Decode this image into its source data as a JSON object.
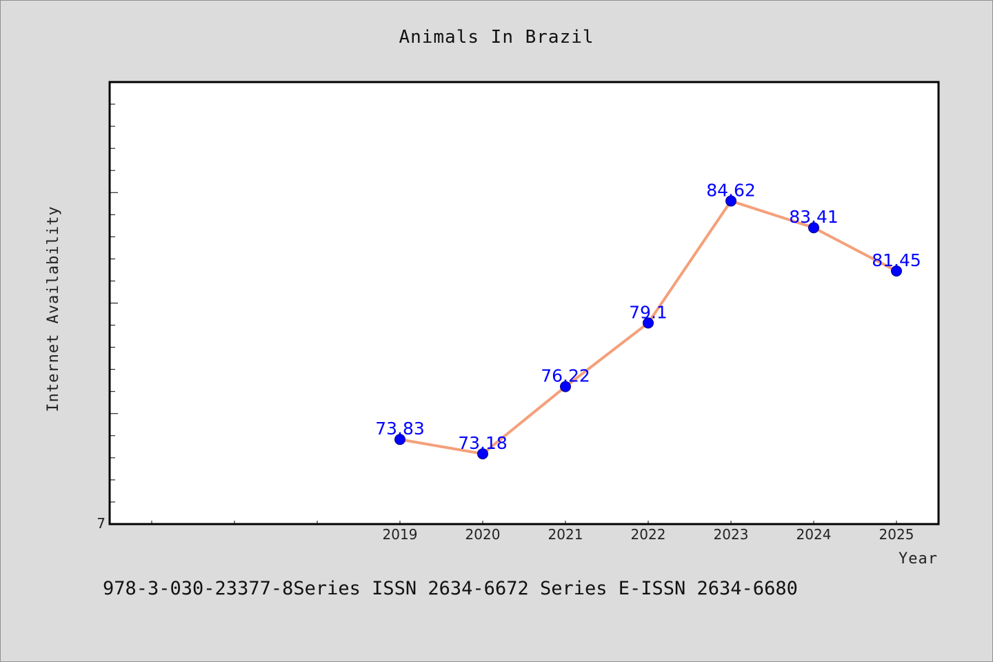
{
  "chart_data": {
    "type": "line",
    "title": "Animals In Brazil",
    "xlabel": "Year",
    "ylabel": "Internet Availability",
    "x": [
      "2019",
      "2020",
      "2021",
      "2022",
      "2023",
      "2024",
      "2025"
    ],
    "values": [
      73.83,
      73.18,
      76.22,
      79.1,
      84.62,
      83.41,
      81.45
    ],
    "data_labels": [
      "73.83",
      "73.18",
      "76.22",
      "79.1",
      "84.62",
      "83.41",
      "81.45"
    ],
    "y_tick_labels": [
      {
        "value": 7,
        "label": "7"
      }
    ],
    "ylim": [
      70,
      90
    ],
    "grid": false,
    "legend": "none",
    "colors": {
      "line": "#f4a07a",
      "marker": "#0000ff",
      "marker_edge": "#000080",
      "data_label": "#0000ff",
      "plot_background": "#ffffff",
      "page_background": "#dcdcdc"
    }
  },
  "footer": {
    "text": "978-3-030-23377-8Series ISSN 2634-6672 Series E-ISSN 2634-6680"
  }
}
